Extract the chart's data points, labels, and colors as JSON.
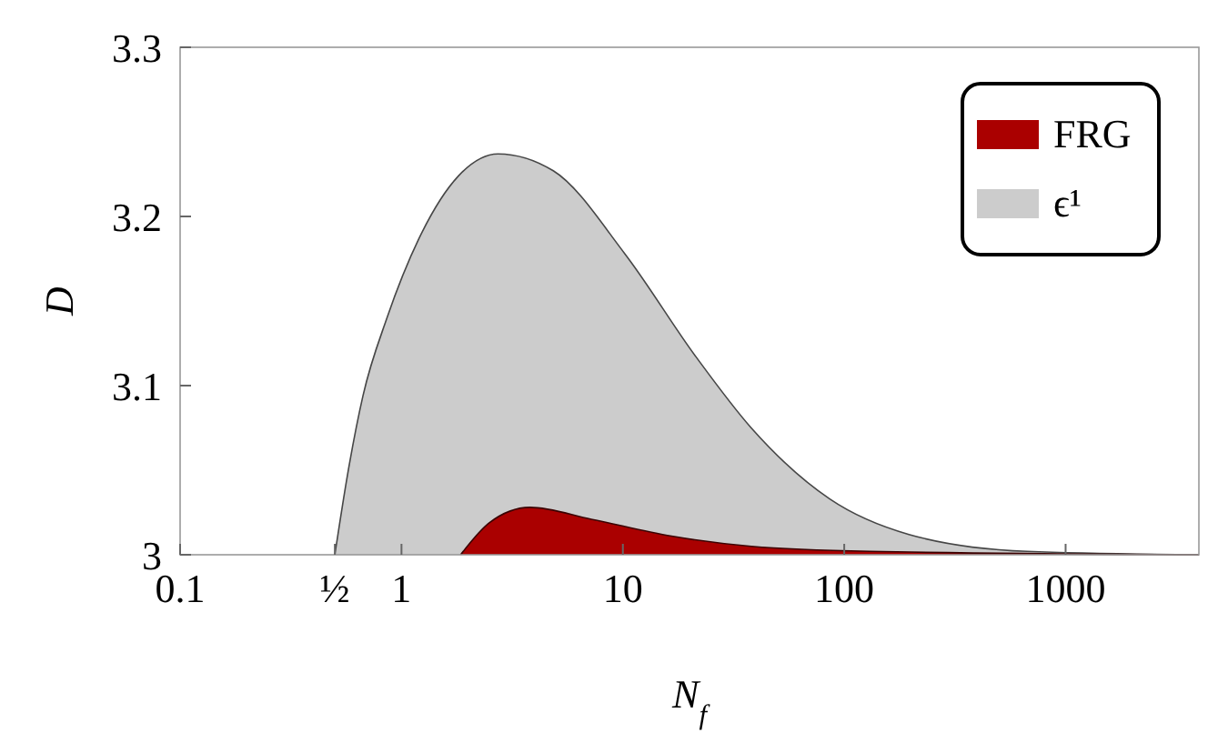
{
  "chart_data": {
    "type": "area",
    "xlabel": "N$_{f}$",
    "ylabel": "D",
    "log": "x",
    "xlim": [
      0.1,
      4000
    ],
    "ylim": [
      3,
      3.3
    ],
    "xticks": [
      0.1,
      {
        "value": 0.5,
        "label": "½"
      },
      1,
      10,
      100,
      1000
    ],
    "yticks": [
      3,
      3.1,
      3.2,
      3.3
    ],
    "grid": false,
    "legend": "top right",
    "series": [
      {
        "name": "FRG",
        "color": "#aa0000",
        "x": [
          1.85,
          2.5,
          3.8,
          7.2,
          16.6,
          38,
          130,
          4000
        ],
        "values": [
          3,
          3.019,
          3.028,
          3.021,
          3.011,
          3.005,
          3.002,
          3
        ]
      },
      {
        "name": "ϵ¹",
        "color": "#cccccc",
        "x": [
          0.5,
          0.57,
          0.67,
          0.86,
          1.2,
          1.81,
          2.73,
          4.85,
          10.2,
          21.4,
          38,
          86,
          196,
          670,
          4000
        ],
        "values": [
          3,
          3.047,
          3.094,
          3.14,
          3.187,
          3.224,
          3.237,
          3.227,
          3.178,
          3.117,
          3.075,
          3.033,
          3.012,
          3.002,
          3
        ]
      }
    ]
  }
}
